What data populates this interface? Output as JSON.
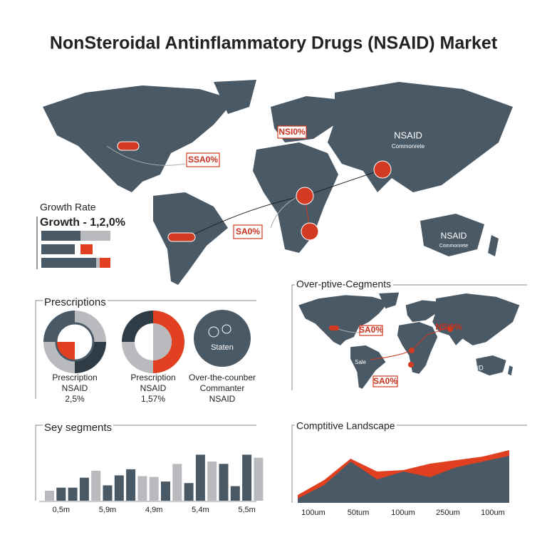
{
  "title": "NonSteroidal Antinflammatory Drugs (NSAID) Market",
  "map": {
    "labels": [
      "NSI0%",
      "SSA0%",
      "SA0%",
      "NSAID",
      "Commonrete",
      "NSAID",
      "Commonrete"
    ]
  },
  "growth": {
    "title": "Growth Rate",
    "subtitle": "Growth - 1,2,0%"
  },
  "prescriptions": {
    "title": "Prescriptions",
    "icon_label": "Staten",
    "items": [
      [
        "Prescription",
        "NSAID",
        "2,5%"
      ],
      [
        "Prescription",
        "NSAID",
        "1,57%"
      ],
      [
        "Over-the-counber",
        "Commanter",
        "NSAID"
      ]
    ]
  },
  "segments_map": {
    "title": "Over-ptive-Cegments",
    "labels": [
      "SA0%",
      "NSI0%",
      "NSAID",
      "Sale",
      "SA0%"
    ]
  },
  "chart_data": [
    {
      "type": "bar",
      "title": "Sey segments",
      "categories": [
        null,
        "0,5m",
        null,
        null,
        null,
        "5,9m",
        null,
        null,
        null,
        "4,9m",
        null,
        null,
        null,
        "5,4m",
        null,
        null,
        null,
        "5,5m",
        null
      ],
      "values": [
        13,
        17,
        17,
        30,
        39,
        20,
        33,
        41,
        32,
        31,
        25,
        48,
        23,
        60,
        51,
        48,
        19,
        60,
        56
      ],
      "colors": [
        "#b8babd",
        "#4a5966",
        "#4a5966",
        "#4a5966",
        "#b8babd",
        "#4a5966",
        "#4a5966",
        "#4a5966",
        "#b8babd",
        "#b8babd",
        "#4a5966",
        "#b8babd",
        "#4a5966",
        "#4a5966",
        "#b8babd",
        "#4a5966",
        "#4a5966",
        "#4a5966",
        "#b8babd"
      ],
      "ylim": [
        0,
        65
      ]
    },
    {
      "type": "area",
      "title": "Comptitive Landscape",
      "x_labels": [
        "100um",
        "50tum",
        "100um",
        "250um",
        "100um"
      ],
      "series": [
        {
          "color": "#e0401f",
          "values": [
            11,
            32,
            62,
            44,
            46,
            55,
            60,
            65,
            74
          ]
        },
        {
          "color": "#4a5966",
          "values": [
            6,
            25,
            58,
            33,
            44,
            36,
            50,
            58,
            66
          ]
        }
      ],
      "ylim": [
        0,
        90
      ]
    }
  ]
}
